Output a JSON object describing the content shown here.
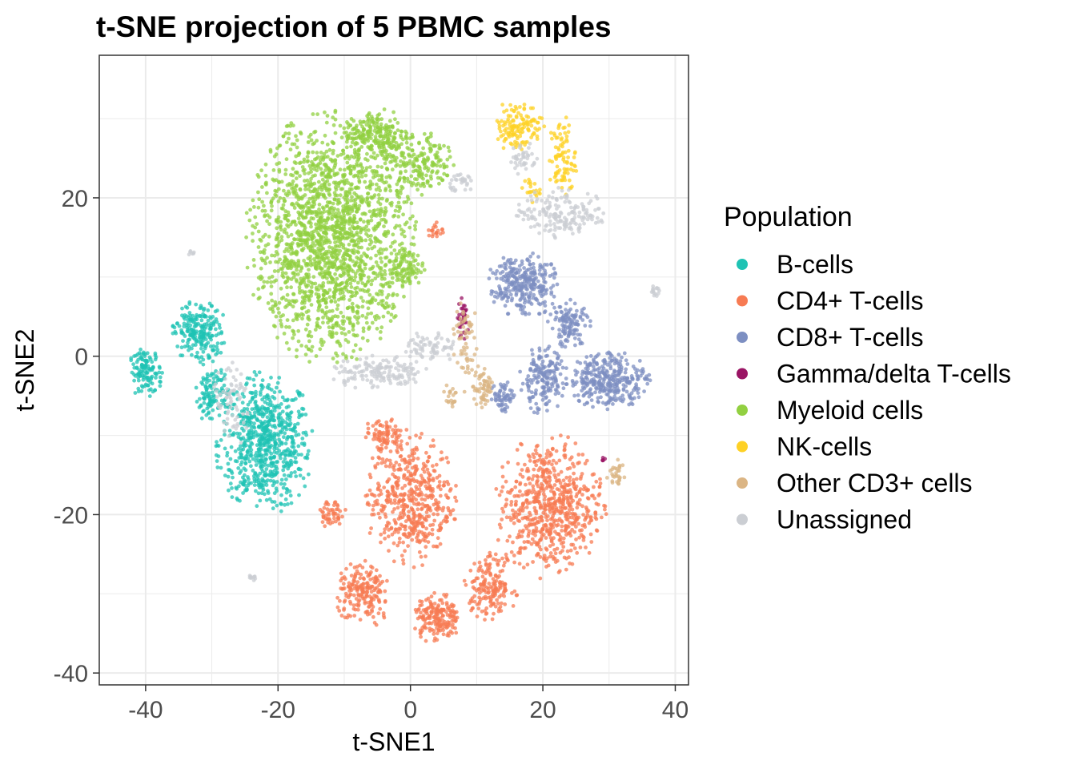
{
  "chart_data": {
    "type": "scatter",
    "title": "t-SNE projection of 5 PBMC samples",
    "xlabel": "t-SNE1",
    "ylabel": "t-SNE2",
    "xlim": [
      -47,
      42
    ],
    "ylim": [
      -41.5,
      38
    ],
    "xticks": [
      -40,
      -20,
      0,
      20,
      40
    ],
    "yticks": [
      -40,
      -20,
      0,
      20
    ],
    "grid": true,
    "legend": {
      "title": "Population",
      "position": "right"
    },
    "series": [
      {
        "name": "B-cells",
        "color": "#1fc3b4",
        "clusters": [
          {
            "center": [
              -22,
              -11
            ],
            "radius": [
              7,
              8.5
            ],
            "count": 700
          },
          {
            "center": [
              -32,
              3
            ],
            "radius": [
              4,
              4
            ],
            "count": 220
          },
          {
            "center": [
              -40,
              -2
            ],
            "radius": [
              2.5,
              3
            ],
            "count": 120
          },
          {
            "center": [
              -30,
              -5
            ],
            "radius": [
              2.5,
              4
            ],
            "count": 110
          }
        ]
      },
      {
        "name": "CD4+ T-cells",
        "color": "#f77b53",
        "clusters": [
          {
            "center": [
              21,
              -19
            ],
            "radius": [
              8,
              8.5
            ],
            "count": 650
          },
          {
            "center": [
              0,
              -18
            ],
            "radius": [
              6.5,
              8
            ],
            "count": 500
          },
          {
            "center": [
              4,
              -33
            ],
            "radius": [
              3.5,
              3
            ],
            "count": 180
          },
          {
            "center": [
              -7,
              -30
            ],
            "radius": [
              4,
              4
            ],
            "count": 190
          },
          {
            "center": [
              12,
              -29
            ],
            "radius": [
              4,
              4
            ],
            "count": 170
          },
          {
            "center": [
              -12,
              -20
            ],
            "radius": [
              2.5,
              2
            ],
            "count": 50
          },
          {
            "center": [
              -4,
              -10
            ],
            "radius": [
              3,
              2
            ],
            "count": 80
          },
          {
            "center": [
              4,
              16
            ],
            "radius": [
              1.5,
              1.5
            ],
            "count": 20
          }
        ]
      },
      {
        "name": "CD8+ T-cells",
        "color": "#7d8fc2",
        "clusters": [
          {
            "center": [
              17,
              9
            ],
            "radius": [
              5,
              4
            ],
            "count": 300
          },
          {
            "center": [
              30,
              -3
            ],
            "radius": [
              6,
              3.5
            ],
            "count": 330
          },
          {
            "center": [
              20,
              -3
            ],
            "radius": [
              3.5,
              4
            ],
            "count": 180
          },
          {
            "center": [
              24,
              4
            ],
            "radius": [
              3,
              3
            ],
            "count": 120
          },
          {
            "center": [
              14,
              -5
            ],
            "radius": [
              2,
              2
            ],
            "count": 60
          }
        ]
      },
      {
        "name": "Gamma/delta T-cells",
        "color": "#9a1464",
        "clusters": [
          {
            "center": [
              8,
              5
            ],
            "radius": [
              0.8,
              3
            ],
            "count": 35
          },
          {
            "center": [
              29,
              -13
            ],
            "radius": [
              0.5,
              0.5
            ],
            "count": 5
          }
        ]
      },
      {
        "name": "Myeloid cells",
        "color": "#92d041",
        "clusters": [
          {
            "center": [
              -12,
              15
            ],
            "radius": [
              12,
              15
            ],
            "count": 1900
          },
          {
            "center": [
              1,
              24
            ],
            "radius": [
              6,
              4
            ],
            "count": 200
          },
          {
            "center": [
              -1,
              11
            ],
            "radius": [
              3,
              2.5
            ],
            "count": 90
          },
          {
            "center": [
              -5,
              28
            ],
            "radius": [
              5,
              3
            ],
            "count": 200
          }
        ]
      },
      {
        "name": "NK-cells",
        "color": "#fed125",
        "clusters": [
          {
            "center": [
              16,
              29
            ],
            "radius": [
              4,
              3
            ],
            "count": 130
          },
          {
            "center": [
              23,
              25
            ],
            "radius": [
              2,
              5
            ],
            "count": 90
          },
          {
            "center": [
              18,
              21
            ],
            "radius": [
              1.5,
              1.5
            ],
            "count": 20
          }
        ]
      },
      {
        "name": "Other CD3+ cells",
        "color": "#dbb584",
        "clusters": [
          {
            "center": [
              11,
              -4
            ],
            "radius": [
              1.5,
              3
            ],
            "count": 60
          },
          {
            "center": [
              8,
              2
            ],
            "radius": [
              2,
              6
            ],
            "count": 60
          },
          {
            "center": [
              31,
              -15
            ],
            "radius": [
              1.5,
              2
            ],
            "count": 30
          },
          {
            "center": [
              6,
              -5
            ],
            "radius": [
              1,
              1.5
            ],
            "count": 20
          }
        ]
      },
      {
        "name": "Unassigned",
        "color": "#cbced3",
        "clusters": [
          {
            "center": [
              23,
              18
            ],
            "radius": [
              7,
              3
            ],
            "count": 180
          },
          {
            "center": [
              17,
              25
            ],
            "radius": [
              2,
              2
            ],
            "count": 40
          },
          {
            "center": [
              -5,
              -2
            ],
            "radius": [
              7,
              2
            ],
            "count": 150
          },
          {
            "center": [
              3,
              1
            ],
            "radius": [
              4,
              2
            ],
            "count": 70
          },
          {
            "center": [
              8,
              22
            ],
            "radius": [
              2,
              1.5
            ],
            "count": 30
          },
          {
            "center": [
              -27,
              -6
            ],
            "radius": [
              3,
              5
            ],
            "count": 70
          },
          {
            "center": [
              -24,
              -28
            ],
            "radius": [
              1,
              0.4
            ],
            "count": 10
          },
          {
            "center": [
              37,
              8
            ],
            "radius": [
              1,
              1
            ],
            "count": 15
          },
          {
            "center": [
              -33,
              13
            ],
            "radius": [
              0.6,
              0.6
            ],
            "count": 6
          }
        ]
      }
    ]
  }
}
